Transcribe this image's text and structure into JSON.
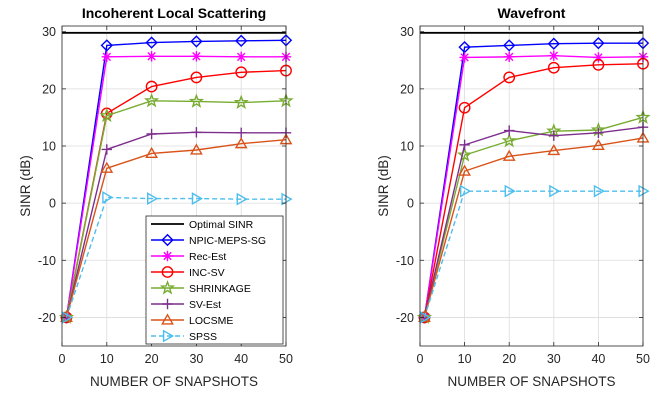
{
  "chart_data": [
    {
      "type": "line",
      "title": "Incoherent Local Scattering",
      "xlabel": "NUMBER OF SNAPSHOTS",
      "ylabel": "SINR (dB)",
      "xlim": [
        0,
        50
      ],
      "ylim": [
        -25,
        31
      ],
      "xticks": [
        "0",
        "10",
        "20",
        "30",
        "40",
        "50"
      ],
      "yticks": [
        "-20",
        "-10",
        "0",
        "10",
        "20",
        "30"
      ],
      "grid": true,
      "legend_position": "bottom-right",
      "series": [
        {
          "name": "Optimal SINR",
          "color": "#000000",
          "marker": "none",
          "x": [
            0,
            50
          ],
          "values": [
            29.8,
            29.8
          ]
        },
        {
          "name": "NPIC-MEPS-SG",
          "color": "#0000FF",
          "marker": "diamond",
          "x": [
            1,
            10,
            20,
            30,
            40,
            50
          ],
          "values": [
            -20,
            27.6,
            28.1,
            28.3,
            28.4,
            28.5
          ]
        },
        {
          "name": "Rec-Est",
          "color": "#FF00FF",
          "marker": "asterisk",
          "x": [
            1,
            10,
            20,
            30,
            40,
            50
          ],
          "values": [
            -20,
            25.6,
            25.7,
            25.7,
            25.6,
            25.6
          ]
        },
        {
          "name": "INC-SV",
          "color": "#FF0000",
          "marker": "circle",
          "x": [
            1,
            10,
            20,
            30,
            40,
            50
          ],
          "values": [
            -20,
            15.7,
            20.4,
            22,
            22.9,
            23.2
          ]
        },
        {
          "name": "SHRINKAGE",
          "color": "#77AC30",
          "marker": "pentagram",
          "x": [
            1,
            10,
            20,
            30,
            40,
            50
          ],
          "values": [
            -20,
            15.3,
            17.9,
            17.8,
            17.6,
            17.9
          ]
        },
        {
          "name": "SV-Est",
          "color": "#7E2F8E",
          "marker": "plus",
          "x": [
            1,
            10,
            20,
            30,
            40,
            50
          ],
          "values": [
            -20,
            9.4,
            12.1,
            12.4,
            12.3,
            12.3
          ]
        },
        {
          "name": "LOCSME",
          "color": "#D95319",
          "marker": "triangle",
          "x": [
            1,
            10,
            20,
            30,
            40,
            50
          ],
          "values": [
            -20,
            6.1,
            8.7,
            9.3,
            10.4,
            11.1
          ]
        },
        {
          "name": "SPSS",
          "color": "#4DBEEE",
          "marker": "triangle-right",
          "dashed": true,
          "x": [
            1,
            10,
            20,
            30,
            40,
            50
          ],
          "values": [
            -20,
            1,
            0.8,
            0.8,
            0.7,
            0.7
          ]
        }
      ]
    },
    {
      "type": "line",
      "title": "Wavefront",
      "xlabel": "NUMBER OF SNAPSHOTS",
      "ylabel": "SINR (dB)",
      "xlim": [
        0,
        50
      ],
      "ylim": [
        -25,
        31
      ],
      "xticks": [
        "0",
        "10",
        "20",
        "30",
        "40",
        "50"
      ],
      "yticks": [
        "-20",
        "-10",
        "0",
        "10",
        "20",
        "30"
      ],
      "grid": true,
      "series": [
        {
          "name": "Optimal SINR",
          "color": "#000000",
          "marker": "none",
          "x": [
            0,
            50
          ],
          "values": [
            29.8,
            29.8
          ]
        },
        {
          "name": "NPIC-MEPS-SG",
          "color": "#0000FF",
          "marker": "diamond",
          "x": [
            1,
            10,
            20,
            30,
            40,
            50
          ],
          "values": [
            -20,
            27.3,
            27.6,
            27.9,
            28,
            28
          ]
        },
        {
          "name": "Rec-Est",
          "color": "#FF00FF",
          "marker": "asterisk",
          "x": [
            1,
            10,
            20,
            30,
            40,
            50
          ],
          "values": [
            -20,
            25.5,
            25.6,
            25.8,
            25.5,
            25.6
          ]
        },
        {
          "name": "INC-SV",
          "color": "#FF0000",
          "marker": "circle",
          "x": [
            1,
            10,
            20,
            30,
            40,
            50
          ],
          "values": [
            -20,
            16.7,
            22,
            23.7,
            24.2,
            24.4
          ]
        },
        {
          "name": "SHRINKAGE",
          "color": "#77AC30",
          "marker": "pentagram",
          "x": [
            1,
            10,
            20,
            30,
            40,
            50
          ],
          "values": [
            -20,
            8.4,
            10.9,
            12.6,
            12.8,
            15
          ]
        },
        {
          "name": "SV-Est",
          "color": "#7E2F8E",
          "marker": "plus",
          "x": [
            1,
            10,
            20,
            30,
            40,
            50
          ],
          "values": [
            -20,
            10.2,
            12.7,
            11.8,
            12.3,
            13.3
          ]
        },
        {
          "name": "LOCSME",
          "color": "#D95319",
          "marker": "triangle",
          "x": [
            1,
            10,
            20,
            30,
            40,
            50
          ],
          "values": [
            -20,
            5.6,
            8.2,
            9.2,
            10.1,
            11.4
          ]
        },
        {
          "name": "SPSS",
          "color": "#4DBEEE",
          "marker": "triangle-right",
          "dashed": true,
          "x": [
            1,
            10,
            20,
            30,
            40,
            50
          ],
          "values": [
            -20,
            2.1,
            2.1,
            2.1,
            2.1,
            2.1
          ]
        }
      ]
    }
  ]
}
